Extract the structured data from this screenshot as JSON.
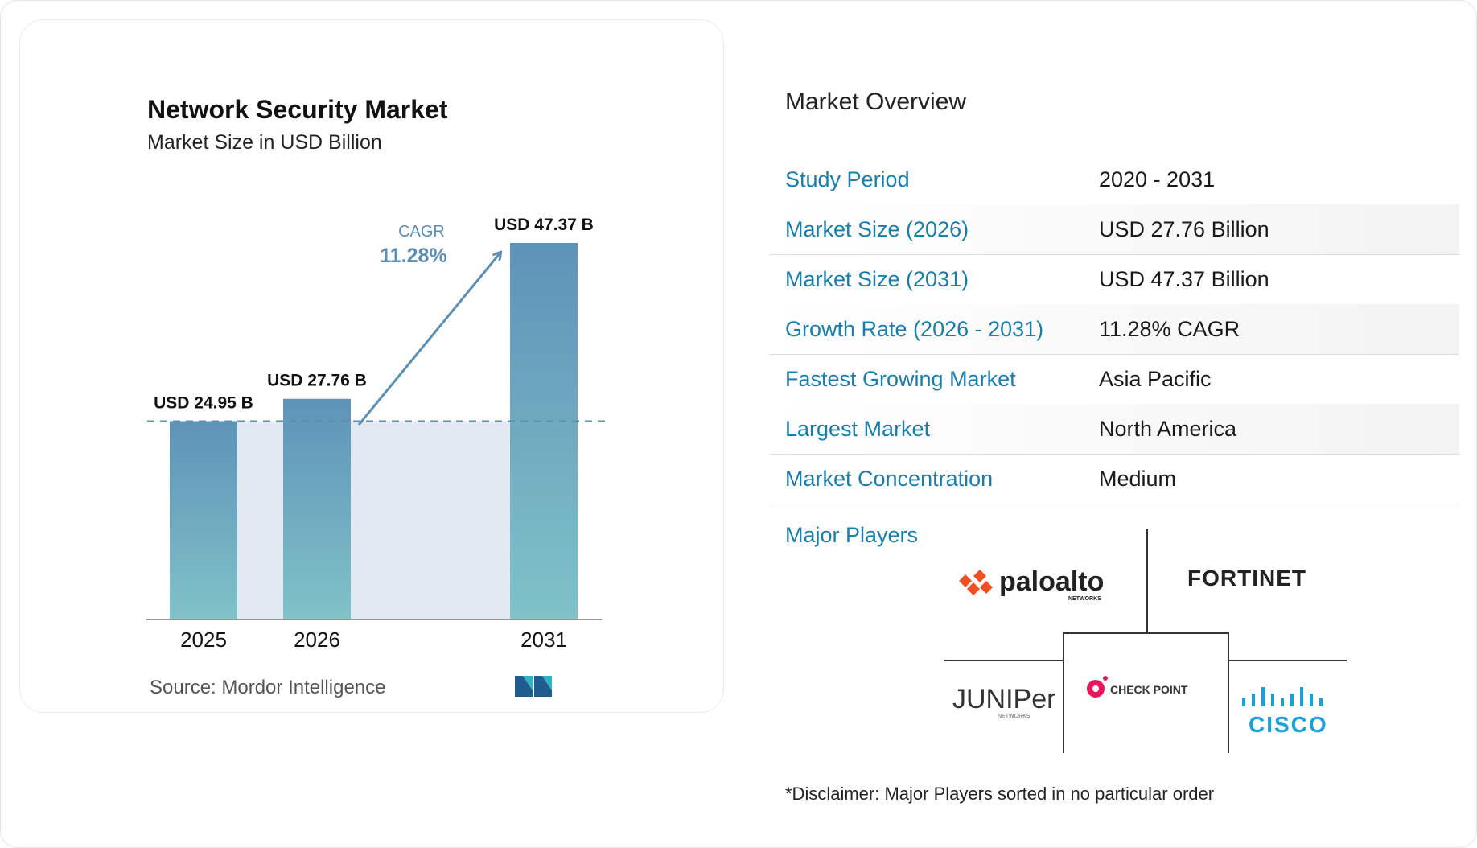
{
  "chart_data": {
    "type": "bar",
    "title": "Network Security Market",
    "subtitle": "Market Size in USD Billion",
    "categories": [
      "2025",
      "2026",
      "2031"
    ],
    "values": [
      24.95,
      27.76,
      47.37
    ],
    "data_labels": [
      "USD 24.95 B",
      "USD 27.76 B",
      "USD 47.37 B"
    ],
    "ylim": [
      0,
      47.37
    ],
    "cagr_label": "CAGR",
    "cagr_value": "11.28%",
    "bar_color_top": "#5e93b8",
    "bar_color_bottom": "#80c2c8",
    "band_color": "#e1eaf2",
    "accent_color": "#5c8fb3",
    "grid": false,
    "legend": "none"
  },
  "source": "Source:  Mordor Intelligence",
  "overview": {
    "title": "Market Overview",
    "rows": [
      {
        "label": "Study Period",
        "value": "2020 - 2031"
      },
      {
        "label": "Market Size (2026)",
        "value": "USD 27.76 Billion"
      },
      {
        "label": "Market Size (2031)",
        "value": "USD 47.37 Billion"
      },
      {
        "label": "Growth Rate (2026 - 2031)",
        "value": "11.28% CAGR"
      },
      {
        "label": "Fastest Growing Market",
        "value": "Asia Pacific"
      },
      {
        "label": "Largest Market",
        "value": "North America"
      },
      {
        "label": "Market Concentration",
        "value": "Medium"
      }
    ],
    "players_label": "Major Players",
    "players": [
      {
        "name": "paloalto",
        "sub": "NETWORKS"
      },
      {
        "name": "FORTINET"
      },
      {
        "name": "JUNIPer",
        "sub": "NETWORKS"
      },
      {
        "name": "CHECK POINT"
      },
      {
        "name": "CISCO"
      }
    ],
    "disclaimer": "*Disclaimer: Major Players sorted in no particular order"
  },
  "colors": {
    "label_blue": "#1a7ea8",
    "paloalto_orange": "#f04e23",
    "fortinet_red": "#e2231a",
    "checkpoint_pink": "#e8185c",
    "cisco_blue": "#1ba0d7"
  }
}
